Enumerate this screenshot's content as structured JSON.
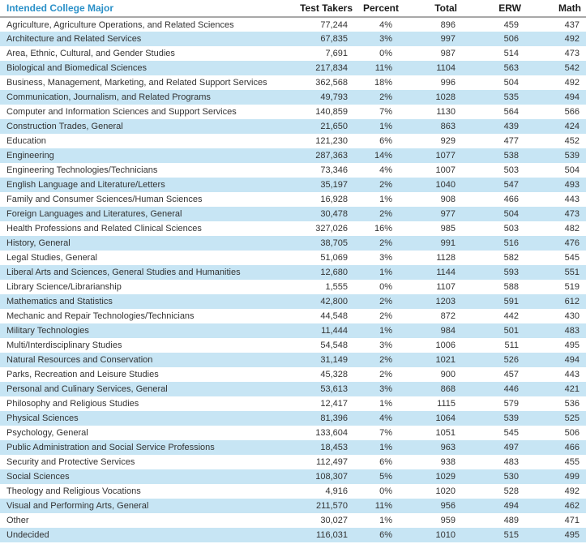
{
  "colors": {
    "accent_blue": "#2a90c8",
    "row_alt_blue": "#c7e5f4",
    "divider_gray": "#a8a8a8",
    "body_text": "#333333"
  },
  "table": {
    "header": {
      "major": "Intended College Major",
      "columns": [
        "Test Takers",
        "Percent",
        "Total",
        "ERW",
        "Math"
      ]
    },
    "rows": [
      {
        "major": "Agriculture, Agriculture Operations, and Related Sciences",
        "test_takers": "77,244",
        "percent": "4%",
        "total": "896",
        "erw": "459",
        "math": "437"
      },
      {
        "major": "Architecture and Related Services",
        "test_takers": "67,835",
        "percent": "3%",
        "total": "997",
        "erw": "506",
        "math": "492"
      },
      {
        "major": "Area, Ethnic, Cultural, and Gender Studies",
        "test_takers": "7,691",
        "percent": "0%",
        "total": "987",
        "erw": "514",
        "math": "473"
      },
      {
        "major": "Biological and Biomedical Sciences",
        "test_takers": "217,834",
        "percent": "11%",
        "total": "1104",
        "erw": "563",
        "math": "542"
      },
      {
        "major": "Business, Management, Marketing, and Related Support Services",
        "test_takers": "362,568",
        "percent": "18%",
        "total": "996",
        "erw": "504",
        "math": "492"
      },
      {
        "major": "Communication, Journalism, and Related Programs",
        "test_takers": "49,793",
        "percent": "2%",
        "total": "1028",
        "erw": "535",
        "math": "494"
      },
      {
        "major": "Computer and Information Sciences and Support Services",
        "test_takers": "140,859",
        "percent": "7%",
        "total": "1130",
        "erw": "564",
        "math": "566"
      },
      {
        "major": "Construction Trades, General",
        "test_takers": "21,650",
        "percent": "1%",
        "total": "863",
        "erw": "439",
        "math": "424"
      },
      {
        "major": "Education",
        "test_takers": "121,230",
        "percent": "6%",
        "total": "929",
        "erw": "477",
        "math": "452"
      },
      {
        "major": "Engineering",
        "test_takers": "287,363",
        "percent": "14%",
        "total": "1077",
        "erw": "538",
        "math": "539"
      },
      {
        "major": "Engineering Technologies/Technicians",
        "test_takers": "73,346",
        "percent": "4%",
        "total": "1007",
        "erw": "503",
        "math": "504"
      },
      {
        "major": "English Language and Literature/Letters",
        "test_takers": "35,197",
        "percent": "2%",
        "total": "1040",
        "erw": "547",
        "math": "493"
      },
      {
        "major": "Family and Consumer Sciences/Human Sciences",
        "test_takers": "16,928",
        "percent": "1%",
        "total": "908",
        "erw": "466",
        "math": "443"
      },
      {
        "major": "Foreign Languages and Literatures, General",
        "test_takers": "30,478",
        "percent": "2%",
        "total": "977",
        "erw": "504",
        "math": "473"
      },
      {
        "major": "Health Professions and Related Clinical Sciences",
        "test_takers": "327,026",
        "percent": "16%",
        "total": "985",
        "erw": "503",
        "math": "482"
      },
      {
        "major": "History, General",
        "test_takers": "38,705",
        "percent": "2%",
        "total": "991",
        "erw": "516",
        "math": "476"
      },
      {
        "major": "Legal Studies, General",
        "test_takers": "51,069",
        "percent": "3%",
        "total": "1128",
        "erw": "582",
        "math": "545"
      },
      {
        "major": "Liberal Arts and Sciences, General Studies and Humanities",
        "test_takers": "12,680",
        "percent": "1%",
        "total": "1144",
        "erw": "593",
        "math": "551"
      },
      {
        "major": "Library Science/Librarianship",
        "test_takers": "1,555",
        "percent": "0%",
        "total": "1107",
        "erw": "588",
        "math": "519"
      },
      {
        "major": "Mathematics and Statistics",
        "test_takers": "42,800",
        "percent": "2%",
        "total": "1203",
        "erw": "591",
        "math": "612"
      },
      {
        "major": "Mechanic and Repair Technologies/Technicians",
        "test_takers": "44,548",
        "percent": "2%",
        "total": "872",
        "erw": "442",
        "math": "430"
      },
      {
        "major": "Military Technologies",
        "test_takers": "11,444",
        "percent": "1%",
        "total": "984",
        "erw": "501",
        "math": "483"
      },
      {
        "major": "Multi/Interdisciplinary Studies",
        "test_takers": "54,548",
        "percent": "3%",
        "total": "1006",
        "erw": "511",
        "math": "495"
      },
      {
        "major": "Natural Resources and Conservation",
        "test_takers": "31,149",
        "percent": "2%",
        "total": "1021",
        "erw": "526",
        "math": "494"
      },
      {
        "major": "Parks, Recreation and Leisure Studies",
        "test_takers": "45,328",
        "percent": "2%",
        "total": "900",
        "erw": "457",
        "math": "443"
      },
      {
        "major": "Personal and Culinary Services, General",
        "test_takers": "53,613",
        "percent": "3%",
        "total": "868",
        "erw": "446",
        "math": "421"
      },
      {
        "major": "Philosophy and Religious Studies",
        "test_takers": "12,417",
        "percent": "1%",
        "total": "1115",
        "erw": "579",
        "math": "536"
      },
      {
        "major": "Physical Sciences",
        "test_takers": "81,396",
        "percent": "4%",
        "total": "1064",
        "erw": "539",
        "math": "525"
      },
      {
        "major": "Psychology, General",
        "test_takers": "133,604",
        "percent": "7%",
        "total": "1051",
        "erw": "545",
        "math": "506"
      },
      {
        "major": "Public Administration and Social Service Professions",
        "test_takers": "18,453",
        "percent": "1%",
        "total": "963",
        "erw": "497",
        "math": "466"
      },
      {
        "major": "Security and Protective Services",
        "test_takers": "112,497",
        "percent": "6%",
        "total": "938",
        "erw": "483",
        "math": "455"
      },
      {
        "major": "Social Sciences",
        "test_takers": "108,307",
        "percent": "5%",
        "total": "1029",
        "erw": "530",
        "math": "499"
      },
      {
        "major": "Theology and Religious Vocations",
        "test_takers": "4,916",
        "percent": "0%",
        "total": "1020",
        "erw": "528",
        "math": "492"
      },
      {
        "major": "Visual and Performing Arts, General",
        "test_takers": "211,570",
        "percent": "11%",
        "total": "956",
        "erw": "494",
        "math": "462"
      },
      {
        "major": "Other",
        "test_takers": "30,027",
        "percent": "1%",
        "total": "959",
        "erw": "489",
        "math": "471"
      },
      {
        "major": "Undecided",
        "test_takers": "116,031",
        "percent": "6%",
        "total": "1010",
        "erw": "515",
        "math": "495"
      }
    ]
  }
}
